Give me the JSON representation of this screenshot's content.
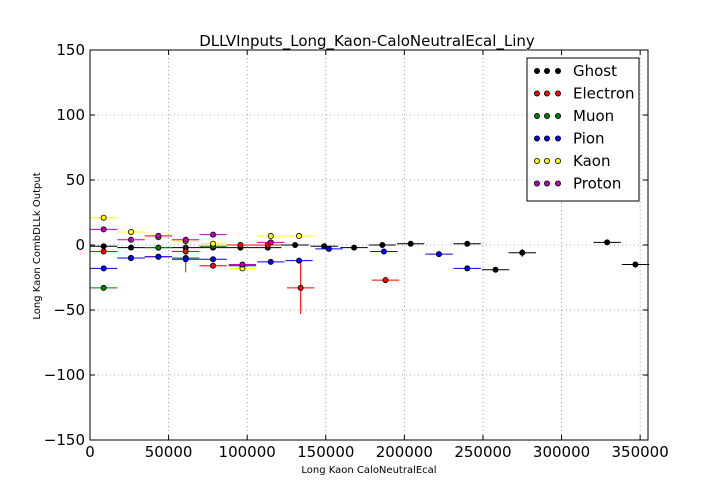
{
  "chart_data": {
    "type": "scatter",
    "title": "DLLVInputs_Long_Kaon-CaloNeutralEcal_Liny",
    "xlabel": "Long Kaon CaloNeutralEcal",
    "ylabel": "Long Kaon CombDLLk Output",
    "xlim": [
      0,
      355000
    ],
    "ylim": [
      -150,
      150
    ],
    "x_ticks": [
      0,
      50000,
      100000,
      150000,
      200000,
      250000,
      300000,
      350000
    ],
    "y_ticks": [
      -150,
      -100,
      -50,
      0,
      50,
      100,
      150
    ],
    "x_tick_labels": [
      "0",
      "50000",
      "100000",
      "150000",
      "200000",
      "250000",
      "300000",
      "350000"
    ],
    "y_tick_labels": [
      "−150",
      "−100",
      "−50",
      "0",
      "50",
      "100",
      "150"
    ],
    "grid": true,
    "legend_position": "top-right",
    "series": [
      {
        "name": "Ghost",
        "color": "#000000",
        "x_err": 8700,
        "x": [
          8700,
          26100,
          43500,
          60900,
          78300,
          95700,
          113100,
          130500,
          149000,
          168000,
          186000,
          204000,
          240000,
          258000,
          275000,
          329000,
          347000
        ],
        "y": [
          -1,
          -2,
          -2,
          -2,
          -2,
          -2,
          -2,
          0,
          -1,
          -2,
          0,
          1,
          1,
          -19,
          -6,
          2,
          -15
        ],
        "y_err": [
          1,
          1,
          1,
          2,
          2,
          2,
          2,
          1,
          2,
          2,
          2,
          1,
          1,
          1,
          3,
          1,
          1
        ]
      },
      {
        "name": "Electron",
        "color": "#ff0000",
        "x_err": 8700,
        "x": [
          8700,
          26100,
          43500,
          60900,
          78300,
          95700,
          113100,
          134000,
          188000
        ],
        "y": [
          -5,
          -10,
          -9,
          -5,
          -16,
          0,
          0,
          -33,
          -27
        ],
        "y_err": [
          1,
          1,
          1,
          2,
          2,
          2,
          3,
          20,
          2
        ]
      },
      {
        "name": "Muon",
        "color": "#008000",
        "x_err": 8700,
        "x": [
          8700,
          26100,
          43500,
          60900,
          78300
        ],
        "y": [
          -33,
          -10,
          -2,
          -10,
          -1
        ],
        "y_err": [
          1,
          1,
          2,
          11,
          2
        ]
      },
      {
        "name": "Pion",
        "color": "#0000ff",
        "x_err": 8700,
        "x": [
          8700,
          26100,
          43500,
          60900,
          78300,
          97000,
          115000,
          133000,
          152000,
          187000,
          222000,
          240000
        ],
        "y": [
          -18,
          -10,
          -9,
          -11,
          -11,
          -16,
          -13,
          -12,
          -3,
          -5,
          -7,
          -18
        ],
        "y_err": [
          1,
          1,
          1,
          1,
          1,
          1,
          1,
          1,
          1,
          1,
          1,
          1
        ]
      },
      {
        "name": "Kaon",
        "color": "#ffff00",
        "x_err": 8700,
        "x": [
          8700,
          26100,
          43500,
          60900,
          78300,
          97000,
          115000,
          133000
        ],
        "y": [
          21,
          10,
          6,
          3,
          1,
          -18,
          7,
          7
        ],
        "y_err": [
          1,
          1,
          1,
          1,
          1,
          1,
          1,
          1
        ]
      },
      {
        "name": "Proton",
        "color": "#bf00bf",
        "x_err": 8700,
        "x": [
          8700,
          26100,
          43500,
          60900,
          78300,
          97000,
          115000
        ],
        "y": [
          12,
          4,
          7,
          4,
          8,
          -15,
          2
        ],
        "y_err": [
          1,
          1,
          1,
          1,
          1,
          1,
          1
        ]
      }
    ]
  }
}
